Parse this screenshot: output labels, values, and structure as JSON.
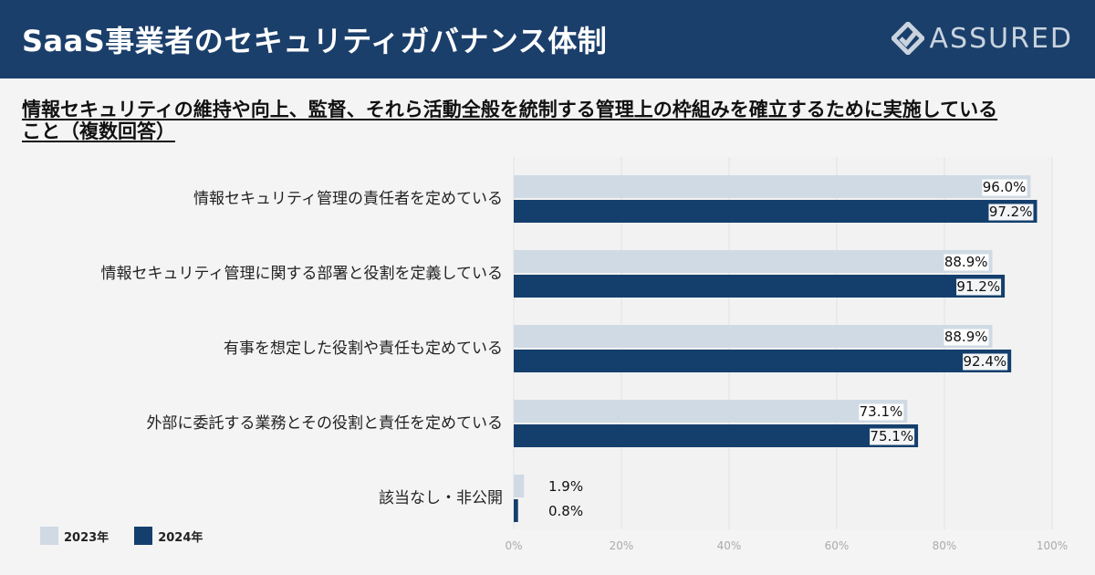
{
  "header": {
    "title": "SaaS事業者のセキュリティガバナンス体制",
    "brand": "ASSURED"
  },
  "subtitle": "情報セキュリティの維持や向上、監督、それら活動全般を統制する管理上の枠組みを確立するために実施していること（複数回答）",
  "colors": {
    "series_2023": "#d0dae4",
    "series_2024": "#143f6d",
    "header_bg": "#1b3f6b"
  },
  "chart_data": {
    "type": "bar",
    "orientation": "horizontal",
    "title": "",
    "xlabel": "",
    "ylabel": "",
    "xlim": [
      0,
      100
    ],
    "x_ticks": [
      "0%",
      "20%",
      "40%",
      "60%",
      "80%",
      "100%"
    ],
    "grid": true,
    "legend_position": "bottom-left",
    "categories": [
      "情報セキュリティ管理の責任者を定めている",
      "情報セキュリティ管理に関する部署と役割を定義している",
      "有事を想定した役割や責任も定めている",
      "外部に委託する業務とその役割と責任を定めている",
      "該当なし・非公開"
    ],
    "series": [
      {
        "name": "2023年",
        "values": [
          96.0,
          88.9,
          88.9,
          73.1,
          1.9
        ],
        "labels": [
          "96.0%",
          "88.9%",
          "88.9%",
          "73.1%",
          "1.9%"
        ]
      },
      {
        "name": "2024年",
        "values": [
          97.2,
          91.2,
          92.4,
          75.1,
          0.8
        ],
        "labels": [
          "97.2%",
          "91.2%",
          "92.4%",
          "75.1%",
          "0.8%"
        ]
      }
    ]
  }
}
